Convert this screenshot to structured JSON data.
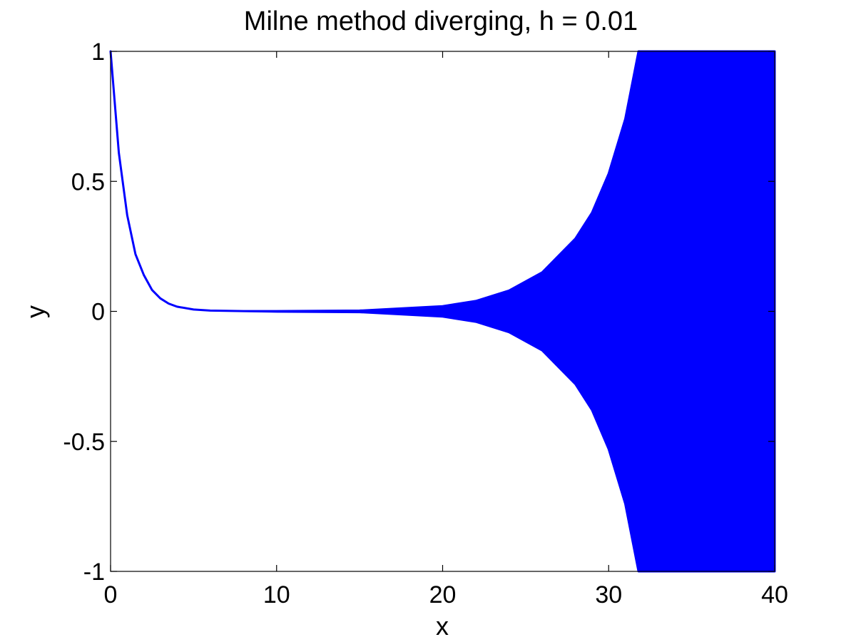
{
  "chart_data": {
    "type": "line",
    "title": "Milne method diverging, h = 0.01",
    "xlabel": "x",
    "ylabel": "y",
    "xlim": [
      0,
      40
    ],
    "ylim": [
      -1,
      1
    ],
    "grid": false,
    "legend": "none",
    "line_color": "#0000ff",
    "xticks": [
      0,
      10,
      20,
      30,
      40
    ],
    "xtick_labels": [
      "0",
      "10",
      "20",
      "30",
      "40"
    ],
    "yticks": [
      -1,
      -0.5,
      0,
      0.5,
      1
    ],
    "ytick_labels": [
      "-1",
      "-0.5",
      "0",
      "0.5",
      "1"
    ],
    "series": [
      {
        "x": [
          0,
          0.5,
          1,
          1.5,
          2,
          2.5,
          3,
          3.5,
          4,
          5,
          6,
          8,
          10,
          15,
          20,
          22,
          24,
          26,
          28,
          29,
          30,
          31,
          31.8
        ],
        "upper_envelope": [
          1.0,
          0.61,
          0.37,
          0.22,
          0.14,
          0.082,
          0.05,
          0.03,
          0.018,
          0.007,
          0.003,
          0.001,
          0.001,
          0.003,
          0.02,
          0.04,
          0.08,
          0.15,
          0.28,
          0.38,
          0.53,
          0.74,
          1.0
        ],
        "lower_envelope": [
          1.0,
          0.61,
          0.37,
          0.22,
          0.14,
          0.082,
          0.05,
          0.03,
          0.018,
          0.007,
          0.003,
          0.001,
          -0.001,
          -0.003,
          -0.02,
          -0.04,
          -0.08,
          -0.15,
          -0.28,
          -0.38,
          -0.53,
          -0.74,
          -1.0
        ]
      }
    ]
  }
}
